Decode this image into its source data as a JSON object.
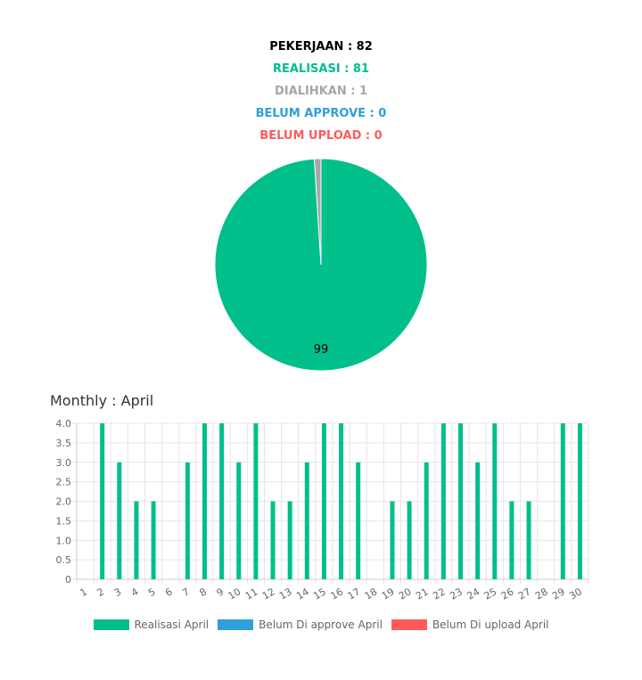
{
  "summary": {
    "pekerjaan": "PEKERJAAN : 82",
    "realisasi": "REALISASI : 81",
    "dialihkan": "DIALIHKAN : 1",
    "belum_approve": "BELUM APPROVE : 0",
    "belum_upload": "BELUM UPLOAD : 0"
  },
  "chart_data": [
    {
      "type": "pie",
      "slices": [
        {
          "value": 99,
          "color": "#00bf8a"
        },
        {
          "value": 1,
          "color": "#a6a6a6"
        }
      ],
      "labels": [
        "99"
      ]
    },
    {
      "type": "bar",
      "title": "Monthly : April",
      "categories": [
        "1",
        "2",
        "3",
        "4",
        "5",
        "6",
        "7",
        "8",
        "9",
        "10",
        "11",
        "12",
        "13",
        "14",
        "15",
        "16",
        "17",
        "18",
        "19",
        "20",
        "21",
        "22",
        "23",
        "24",
        "25",
        "26",
        "27",
        "28",
        "29",
        "30"
      ],
      "series": [
        {
          "name": "Realisasi April",
          "color": "#00bf8a",
          "values": [
            0,
            4,
            3,
            2,
            2,
            0,
            3,
            4,
            4,
            3,
            4,
            2,
            2,
            3,
            4,
            4,
            3,
            0,
            2,
            2,
            3,
            4,
            4,
            3,
            4,
            2,
            2,
            0,
            4,
            4
          ]
        },
        {
          "name": "Belum Di approve April",
          "color": "#2e9fdc",
          "values": [
            0,
            0,
            0,
            0,
            0,
            0,
            0,
            0,
            0,
            0,
            0,
            0,
            0,
            0,
            0,
            0,
            0,
            0,
            0,
            0,
            0,
            0,
            0,
            0,
            0,
            0,
            0,
            0,
            0,
            0
          ]
        },
        {
          "name": "Belum Di upload April",
          "color": "#ff5a5a",
          "values": [
            0,
            0,
            0,
            0,
            0,
            0,
            0,
            0,
            0,
            0,
            0,
            0,
            0,
            0,
            0,
            0,
            0,
            0,
            0,
            0,
            0,
            0,
            0,
            0,
            0,
            0,
            0,
            0,
            0,
            0
          ]
        }
      ],
      "y_ticks": [
        "0",
        "0.5",
        "1.0",
        "1.5",
        "2.0",
        "2.5",
        "3.0",
        "3.5",
        "4.0"
      ],
      "ylim": [
        0,
        4
      ],
      "grid": true,
      "legend": "bottom"
    }
  ]
}
